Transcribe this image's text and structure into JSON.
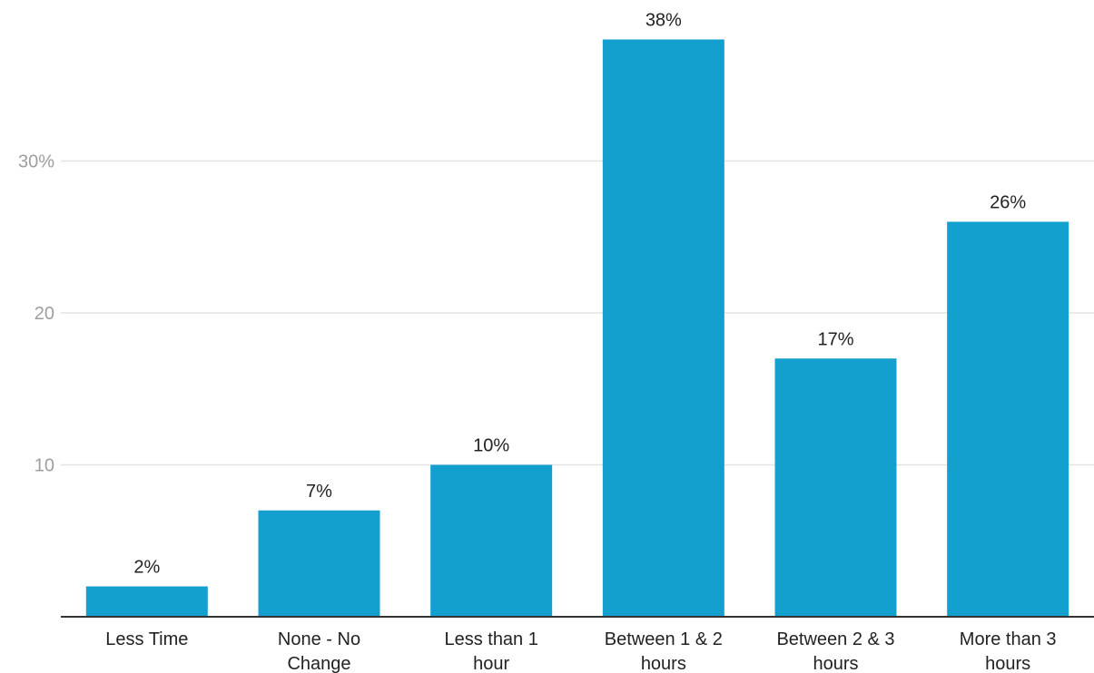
{
  "chart_data": {
    "type": "bar",
    "categories": [
      [
        "Less Time"
      ],
      [
        "None - No",
        "Change"
      ],
      [
        "Less than 1",
        "hour"
      ],
      [
        "Between 1 & 2",
        "hours"
      ],
      [
        "Between 2 & 3",
        "hours"
      ],
      [
        "More than 3",
        "hours"
      ]
    ],
    "values": [
      2,
      7,
      10,
      38,
      17,
      26
    ],
    "data_labels": [
      "2%",
      "7%",
      "10%",
      "38%",
      "17%",
      "26%"
    ],
    "y_ticks": [
      {
        "value": 10,
        "label": "10"
      },
      {
        "value": 20,
        "label": "20"
      },
      {
        "value": 30,
        "label": "30%"
      }
    ],
    "ylim": [
      0,
      40
    ],
    "grid": true,
    "bar_color": "#14a0cf",
    "title": "",
    "xlabel": "",
    "ylabel": ""
  }
}
